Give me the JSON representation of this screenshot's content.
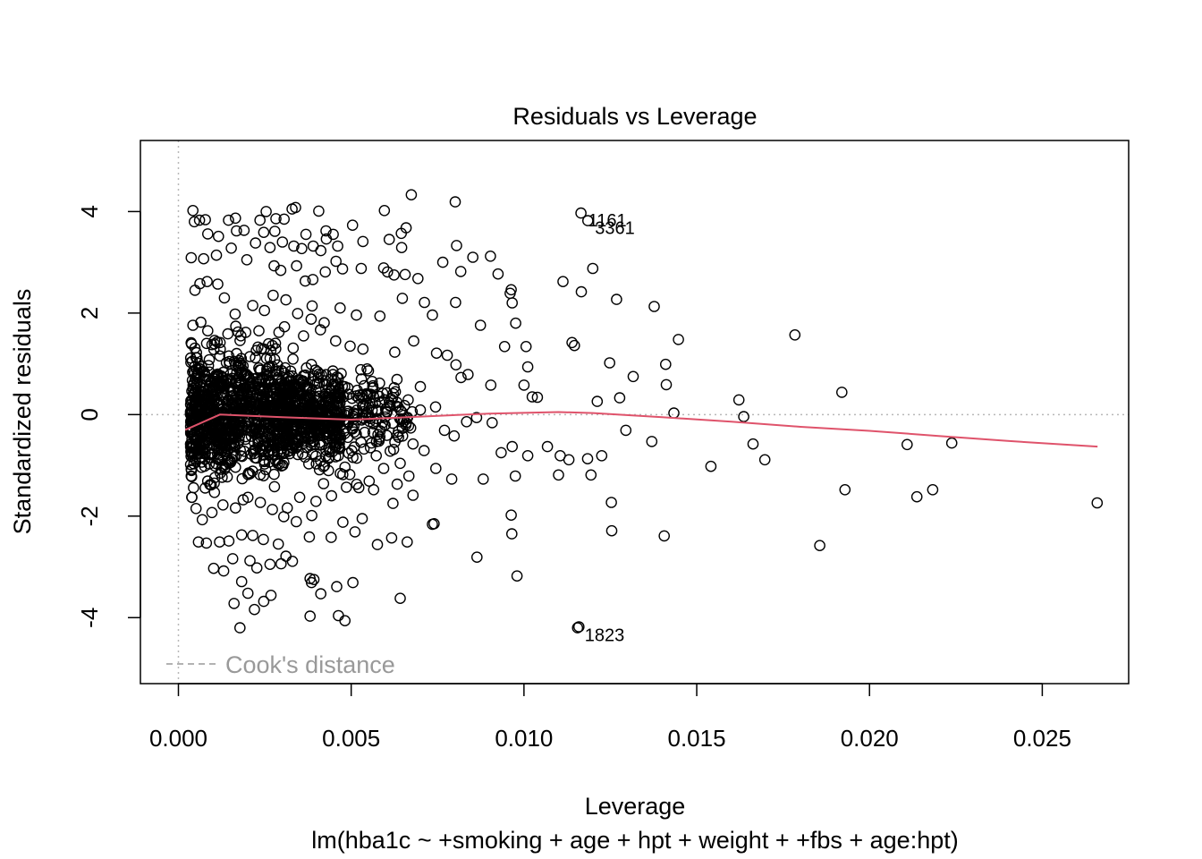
{
  "chart_data": {
    "type": "scatter",
    "title": "Residuals vs Leverage",
    "xlabel": "Leverage",
    "subtitle": "lm(hba1c ~ +smoking + age + hpt + weight + +fbs + age:hpt)",
    "ylabel": "Standardized residuals",
    "xlim": [
      -0.0011,
      0.0275
    ],
    "ylim": [
      -5.3,
      5.4
    ],
    "x_ticks": [
      0.0,
      0.005,
      0.01,
      0.015,
      0.02,
      0.025
    ],
    "x_tick_labels": [
      "0.000",
      "0.005",
      "0.010",
      "0.015",
      "0.020",
      "0.025"
    ],
    "y_ticks": [
      -4,
      -2,
      0,
      2,
      4
    ],
    "y_tick_labels": [
      "-4",
      "-2",
      "0",
      "2",
      "4"
    ],
    "hline": 0,
    "vline": 0,
    "legend": {
      "label": "Cook's distance",
      "position": "bottom-left",
      "color": "#999999"
    },
    "smooth": {
      "color": "#DF536B",
      "x": [
        0.0002,
        0.0012,
        0.003,
        0.005,
        0.007,
        0.009,
        0.011,
        0.012,
        0.014,
        0.016,
        0.018,
        0.02,
        0.022,
        0.024,
        0.0266
      ],
      "y": [
        -0.3,
        0.0,
        -0.05,
        -0.1,
        -0.04,
        0.02,
        0.05,
        0.03,
        -0.05,
        -0.14,
        -0.24,
        -0.32,
        -0.42,
        -0.52,
        -0.63
      ]
    },
    "labeled_points": [
      {
        "id": "1161",
        "x": 0.01165,
        "y": 3.97
      },
      {
        "id": "3361",
        "x": 0.01185,
        "y": 3.82
      },
      {
        "id": "1823",
        "x": 0.01155,
        "y": -4.2
      }
    ],
    "points": [
      [
        0.00042,
        4.02
      ],
      [
        0.00046,
        3.8
      ],
      [
        0.00061,
        3.83
      ],
      [
        0.00078,
        3.84
      ],
      [
        0.00145,
        3.83
      ],
      [
        0.00165,
        3.87
      ],
      [
        0.00236,
        3.83
      ],
      [
        0.00282,
        3.86
      ],
      [
        0.00254,
        4.0
      ],
      [
        0.00306,
        3.85
      ],
      [
        0.00329,
        4.05
      ],
      [
        0.00339,
        4.08
      ],
      [
        0.00406,
        4.01
      ],
      [
        0.00596,
        4.02
      ],
      [
        0.00674,
        4.33
      ],
      [
        0.00801,
        4.19
      ],
      [
        0.00428,
        3.46
      ],
      [
        0.00448,
        3.55
      ],
      [
        0.00412,
        3.23
      ],
      [
        0.00369,
        3.55
      ],
      [
        0.00357,
        3.27
      ],
      [
        0.00265,
        3.29
      ],
      [
        0.00279,
        3.61
      ],
      [
        0.0061,
        3.45
      ],
      [
        0.00645,
        3.57
      ],
      [
        0.00646,
        3.29
      ],
      [
        0.00659,
        3.68
      ],
      [
        0.00504,
        3.73
      ],
      [
        0.00534,
        3.41
      ],
      [
        0.00461,
        3.32
      ],
      [
        0.00427,
        3.62
      ],
      [
        0.0039,
        3.32
      ],
      [
        0.00334,
        3.32
      ],
      [
        0.00301,
        3.4
      ],
      [
        0.00085,
        3.56
      ],
      [
        0.00116,
        3.51
      ],
      [
        0.00168,
        3.62
      ],
      [
        0.0019,
        3.63
      ],
      [
        0.00037,
        3.09
      ],
      [
        0.00073,
        3.07
      ],
      [
        0.0011,
        3.14
      ],
      [
        0.00153,
        3.28
      ],
      [
        0.00198,
        3.05
      ],
      [
        0.00223,
        3.38
      ],
      [
        0.00247,
        3.59
      ],
      [
        0.00277,
        2.93
      ],
      [
        0.00296,
        2.84
      ],
      [
        0.00342,
        2.93
      ],
      [
        0.00367,
        2.63
      ],
      [
        0.00389,
        2.66
      ],
      [
        0.00425,
        2.81
      ],
      [
        0.00456,
        3.02
      ],
      [
        0.00475,
        2.87
      ],
      [
        0.00529,
        2.88
      ],
      [
        0.00594,
        2.89
      ],
      [
        0.00605,
        2.81
      ],
      [
        0.00624,
        2.75
      ],
      [
        0.00656,
        2.76
      ],
      [
        0.00693,
        2.68
      ],
      [
        0.00765,
        3.0
      ],
      [
        0.00805,
        3.33
      ],
      [
        0.00852,
        3.1
      ],
      [
        0.00903,
        3.12
      ],
      [
        0.00925,
        2.77
      ],
      [
        0.0096,
        2.39
      ],
      [
        0.00963,
        2.46
      ],
      [
        0.00817,
        2.82
      ],
      [
        0.00802,
        2.21
      ],
      [
        0.00712,
        2.21
      ],
      [
        0.00648,
        2.29
      ],
      [
        0.00583,
        1.94
      ],
      [
        0.00515,
        1.96
      ],
      [
        0.00468,
        2.1
      ],
      [
        0.00422,
        1.81
      ],
      [
        0.00387,
        2.14
      ],
      [
        0.00345,
        1.99
      ],
      [
        0.00311,
        2.26
      ],
      [
        0.00274,
        2.35
      ],
      [
        0.00249,
        2.05
      ],
      [
        0.00215,
        2.15
      ],
      [
        0.00164,
        1.98
      ],
      [
        0.00133,
        2.3
      ],
      [
        0.00114,
        2.57
      ],
      [
        0.00083,
        2.62
      ],
      [
        0.00062,
        2.58
      ],
      [
        0.00048,
        2.45
      ],
      [
        0.00735,
        1.96
      ],
      [
        0.00681,
        1.45
      ],
      [
        0.00747,
        1.21
      ],
      [
        0.00778,
        1.17
      ],
      [
        0.00803,
        0.98
      ],
      [
        0.00818,
        0.73
      ],
      [
        0.00838,
        0.79
      ],
      [
        0.00874,
        1.76
      ],
      [
        0.00904,
        0.58
      ],
      [
        0.00944,
        1.34
      ],
      [
        0.00966,
        2.2
      ],
      [
        0.00976,
        1.8
      ],
      [
        0.01,
        0.58
      ],
      [
        0.01006,
        1.34
      ],
      [
        0.01011,
        0.94
      ],
      [
        0.01024,
        0.35
      ],
      [
        0.01039,
        0.34
      ],
      [
        0.01113,
        2.62
      ],
      [
        0.01139,
        1.42
      ],
      [
        0.01146,
        1.36
      ],
      [
        0.01166,
        2.42
      ],
      [
        0.01199,
        2.88
      ],
      [
        0.01212,
        0.26
      ],
      [
        0.01248,
        1.02
      ],
      [
        0.01268,
        2.27
      ],
      [
        0.01277,
        0.33
      ],
      [
        0.01316,
        0.75
      ],
      [
        0.01377,
        2.13
      ],
      [
        0.0141,
        0.99
      ],
      [
        0.01412,
        0.59
      ],
      [
        0.01434,
        0.03
      ],
      [
        0.01447,
        1.48
      ],
      [
        0.01622,
        0.29
      ],
      [
        0.01636,
        -0.04
      ],
      [
        0.01784,
        1.57
      ],
      [
        0.0192,
        0.44
      ],
      [
        0.00546,
        0.9
      ],
      [
        0.00582,
        0.62
      ],
      [
        0.00626,
        1.23
      ],
      [
        0.007,
        0.55
      ],
      [
        0.00744,
        0.15
      ],
      [
        0.0077,
        -0.31
      ],
      [
        0.00798,
        -0.42
      ],
      [
        0.00834,
        -0.14
      ],
      [
        0.00863,
        -0.06
      ],
      [
        0.00908,
        -0.16
      ],
      [
        0.00934,
        -0.75
      ],
      [
        0.00966,
        -0.63
      ],
      [
        0.01011,
        -0.81
      ],
      [
        0.01068,
        -0.63
      ],
      [
        0.01105,
        -0.81
      ],
      [
        0.0113,
        -0.89
      ],
      [
        0.01184,
        -0.87
      ],
      [
        0.01225,
        -0.81
      ],
      [
        0.01295,
        -0.31
      ],
      [
        0.0137,
        -0.53
      ],
      [
        0.01541,
        -1.02
      ],
      [
        0.01663,
        -0.58
      ],
      [
        0.01697,
        -0.89
      ],
      [
        0.02109,
        -0.59
      ],
      [
        0.02238,
        -0.56
      ],
      [
        0.00711,
        -0.71
      ],
      [
        0.00679,
        -0.58
      ],
      [
        0.00642,
        -0.96
      ],
      [
        0.00613,
        -0.72
      ],
      [
        0.00745,
        -1.06
      ],
      [
        0.00791,
        -1.27
      ],
      [
        0.00882,
        -1.27
      ],
      [
        0.00975,
        -1.21
      ],
      [
        0.011,
        -1.19
      ],
      [
        0.01194,
        -1.19
      ],
      [
        0.01253,
        -1.73
      ],
      [
        0.01929,
        -1.48
      ],
      [
        0.02137,
        -1.62
      ],
      [
        0.02183,
        -1.48
      ],
      [
        0.02659,
        -1.74
      ],
      [
        0.00735,
        -2.16
      ],
      [
        0.0074,
        -2.15
      ],
      [
        0.00864,
        -2.81
      ],
      [
        0.00963,
        -1.98
      ],
      [
        0.00965,
        -2.35
      ],
      [
        0.0098,
        -3.18
      ],
      [
        0.01254,
        -2.29
      ],
      [
        0.01406,
        -2.39
      ],
      [
        0.01856,
        -2.58
      ],
      [
        0.00662,
        -2.51
      ],
      [
        0.00617,
        -2.43
      ],
      [
        0.00576,
        -2.56
      ],
      [
        0.00532,
        -2.05
      ],
      [
        0.00511,
        -2.31
      ],
      [
        0.00476,
        -2.12
      ],
      [
        0.00442,
        -2.42
      ],
      [
        0.00379,
        -2.41
      ],
      [
        0.00386,
        -1.99
      ],
      [
        0.00341,
        -2.11
      ],
      [
        0.00305,
        -2.01
      ],
      [
        0.00289,
        -2.55
      ],
      [
        0.00311,
        -2.79
      ],
      [
        0.00246,
        -2.46
      ],
      [
        0.00215,
        -2.38
      ],
      [
        0.00183,
        -2.37
      ],
      [
        0.00146,
        -2.49
      ],
      [
        0.00119,
        -2.51
      ],
      [
        0.00081,
        -2.53
      ],
      [
        0.00058,
        -2.51
      ],
      [
        0.00102,
        -3.03
      ],
      [
        0.00131,
        -3.08
      ],
      [
        0.00157,
        -2.84
      ],
      [
        0.00183,
        -3.29
      ],
      [
        0.00207,
        -2.88
      ],
      [
        0.00227,
        -3.02
      ],
      [
        0.00265,
        -2.95
      ],
      [
        0.00297,
        -2.94
      ],
      [
        0.0033,
        -2.89
      ],
      [
        0.00381,
        -3.23
      ],
      [
        0.00385,
        -3.31
      ],
      [
        0.00412,
        -3.53
      ],
      [
        0.00458,
        -3.39
      ],
      [
        0.00505,
        -3.31
      ],
      [
        0.00482,
        -4.06
      ],
      [
        0.00463,
        -3.96
      ],
      [
        0.00381,
        -3.97
      ],
      [
        0.00161,
        -3.72
      ],
      [
        0.00178,
        -4.2
      ],
      [
        0.0022,
        -3.84
      ],
      [
        0.00247,
        -3.68
      ],
      [
        0.00201,
        -3.52
      ],
      [
        0.00642,
        -3.62
      ],
      [
        0.01159,
        -4.18
      ],
      [
        0.00392,
        -3.25
      ],
      [
        0.00268,
        -3.56
      ],
      [
        0.00437,
        -0.84
      ],
      [
        0.0042,
        -1.36
      ],
      [
        0.00399,
        -0.97
      ],
      [
        0.00496,
        -1.18
      ],
      [
        0.00516,
        -0.86
      ],
      [
        0.00552,
        -1.31
      ],
      [
        0.00594,
        -1.06
      ],
      [
        0.00633,
        -1.37
      ],
      [
        0.00667,
        -1.21
      ],
      [
        0.00551,
        -0.05
      ],
      [
        0.00573,
        0.09
      ],
      [
        0.00471,
        0.81
      ],
      [
        0.00497,
        1.35
      ],
      [
        0.00534,
        1.29
      ],
      [
        0.00455,
        1.45
      ],
      [
        0.00411,
        1.67
      ],
      [
        0.00384,
        1.88
      ],
      [
        0.00362,
        1.55
      ],
      [
        0.00332,
        1.31
      ],
      [
        0.00307,
        1.73
      ],
      [
        0.00291,
        1.62
      ],
      [
        0.00272,
        1.36
      ],
      [
        0.00248,
        1.29
      ],
      [
        0.00233,
        1.65
      ],
      [
        0.00195,
        1.62
      ],
      [
        0.00166,
        1.74
      ],
      [
        0.00143,
        1.59
      ],
      [
        0.00112,
        1.43
      ],
      [
        0.00085,
        1.65
      ],
      [
        0.00065,
        1.82
      ],
      [
        0.00042,
        1.76
      ],
      [
        0.00038,
        1.39
      ],
      [
        0.00037,
        -1.21
      ],
      [
        0.00039,
        -1.63
      ],
      [
        0.00051,
        -1.85
      ],
      [
        0.00069,
        -2.07
      ],
      [
        0.00097,
        -1.93
      ],
      [
        0.00129,
        -1.78
      ],
      [
        0.00165,
        -1.84
      ],
      [
        0.00201,
        -1.63
      ],
      [
        0.00237,
        -1.73
      ],
      [
        0.00272,
        -1.87
      ],
      [
        0.00315,
        -1.84
      ],
      [
        0.00351,
        -1.63
      ],
      [
        0.00398,
        -1.71
      ],
      [
        0.00443,
        -1.6
      ],
      [
        0.00486,
        -1.43
      ],
      [
        0.00522,
        -1.44
      ],
      [
        0.00565,
        -1.48
      ],
      [
        0.00621,
        -1.75
      ],
      [
        0.00679,
        -1.59
      ],
      [
        0.00581,
        0.36
      ],
      [
        0.00628,
        0.45
      ],
      [
        0.00665,
        0.29
      ],
      [
        0.007,
        0.09
      ],
      [
        0.00648,
        -0.27
      ],
      [
        0.00603,
        -0.41
      ],
      [
        0.00559,
        -0.56
      ],
      [
        0.00509,
        -0.64
      ]
    ]
  }
}
